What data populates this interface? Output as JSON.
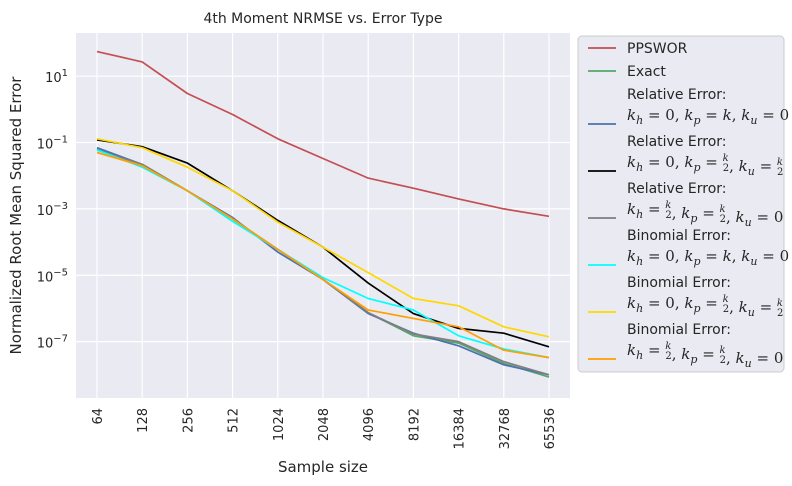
{
  "chart_data": {
    "type": "line",
    "title": "4th Moment NRMSE vs. Error Type",
    "xlabel": "Sample size",
    "ylabel": "Normalized Root Mean Squared Error",
    "x": [
      "64",
      "128",
      "256",
      "512",
      "1024",
      "2048",
      "4096",
      "8192",
      "16384",
      "32768",
      "65536"
    ],
    "y_scale": "log",
    "ylim": [
      2e-09,
      200
    ],
    "y_ticks": [
      {
        "value": 10,
        "label": "10^1"
      },
      {
        "value": 0.1,
        "label": "10^-1"
      },
      {
        "value": 0.001,
        "label": "10^-3"
      },
      {
        "value": 1e-05,
        "label": "10^-5"
      },
      {
        "value": 1e-07,
        "label": "10^-7"
      }
    ],
    "grid": true,
    "legend_position": "outside-right",
    "series": [
      {
        "name": "PPSWOR",
        "color": "#c44e52",
        "values": [
          55,
          27,
          3.0,
          0.7,
          0.13,
          0.033,
          0.0085,
          0.0042,
          0.002,
          0.001,
          0.0006
        ]
      },
      {
        "name": "Exact",
        "color": "#55a868",
        "values": [
          0.065,
          0.022,
          0.0035,
          0.0005,
          6e-05,
          7.5e-06,
          7.5e-07,
          1.5e-07,
          9e-08,
          2.2e-08,
          8.5e-09
        ]
      },
      {
        "name": "Relative Error:",
        "math": "k_h=0, k_p=k, k_u=0",
        "color": "#4c72b0",
        "values": [
          0.07,
          0.022,
          0.0035,
          0.00055,
          5e-05,
          7.5e-06,
          7e-07,
          1.8e-07,
          7.5e-08,
          2e-08,
          1e-08
        ]
      },
      {
        "name": "Relative Error:",
        "math": "k_h=0, k_p=k/2, k_u=k/2",
        "color": "#000000",
        "values": [
          0.12,
          0.075,
          0.024,
          0.0035,
          0.00045,
          7e-05,
          5.8e-06,
          7e-07,
          2.5e-07,
          1.8e-07,
          7e-08
        ]
      },
      {
        "name": "Relative Error:",
        "math": "k_h=k/2, k_p=k/2, k_u=0",
        "color": "#7f7f7f",
        "values": [
          0.06,
          0.022,
          0.0035,
          0.0005,
          6e-05,
          7.5e-06,
          7.5e-07,
          1.7e-07,
          1e-07,
          2.5e-08,
          1e-08
        ]
      },
      {
        "name": "Binomial Error:",
        "math": "k_h=0, k_p=k, k_u=0",
        "color": "#00ffff",
        "values": [
          0.06,
          0.018,
          0.0035,
          0.00042,
          6e-05,
          8.5e-06,
          2e-06,
          9e-07,
          1.5e-07,
          6e-08,
          3.3e-08
        ]
      },
      {
        "name": "Binomial Error:",
        "math": "k_h=0, k_p=k/2, k_u=k/2",
        "color": "#ffd700",
        "values": [
          0.13,
          0.07,
          0.018,
          0.0035,
          0.0004,
          7e-05,
          1.2e-05,
          2e-06,
          1.2e-06,
          2.8e-07,
          1.4e-07
        ]
      },
      {
        "name": "Binomial Error:",
        "math": "k_h=k/2, k_p=k/2, k_u=0",
        "color": "#ff9f00",
        "values": [
          0.05,
          0.02,
          0.0035,
          0.0005,
          6e-05,
          7.5e-06,
          9e-07,
          5e-07,
          2.8e-07,
          5.5e-08,
          3.3e-08
        ]
      }
    ]
  }
}
